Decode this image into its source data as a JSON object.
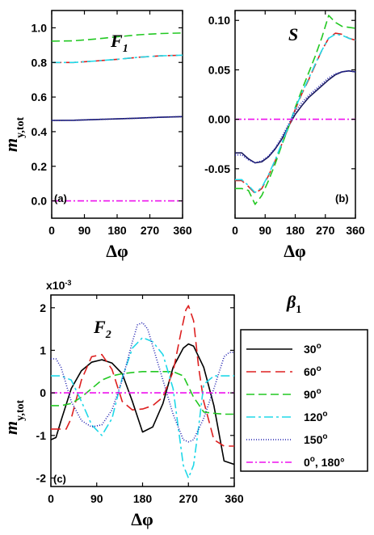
{
  "figure": {
    "panels_top": [
      {
        "title_main": "F",
        "title_sub": "1",
        "label": "(a)"
      },
      {
        "title_main": "S",
        "title_sub": "",
        "label": "(b)"
      }
    ],
    "panel_bottom": {
      "title_main": "F",
      "title_sub": "2",
      "label": "(c)",
      "multiplier": "x10",
      "multiplier_exp": "-3"
    },
    "ylabel_main": "m",
    "ylabel_sub": "y,tot",
    "xlabel": "Δφ",
    "legend_title_main": "β",
    "legend_title_sub": "1",
    "legend_entries": [
      {
        "text": "30",
        "sup": "o",
        "suffix": ""
      },
      {
        "text": "60",
        "sup": "o",
        "suffix": ""
      },
      {
        "text": "90",
        "sup": "o",
        "suffix": ""
      },
      {
        "text": "120",
        "sup": "o",
        "suffix": ""
      },
      {
        "text": "150",
        "sup": "o",
        "suffix": ""
      },
      {
        "text": "0",
        "sup": "o",
        "suffix": ", 180°"
      }
    ]
  },
  "chart_data": [
    {
      "type": "line",
      "panel": "a",
      "xlim": [
        0,
        360
      ],
      "ylim": [
        -0.1,
        1.1
      ],
      "x_ticks": [
        0,
        90,
        180,
        270,
        360
      ],
      "y_ticks": [
        0.0,
        0.2,
        0.4,
        0.6,
        0.8,
        1.0
      ],
      "y_tick_labels": [
        "0.0",
        "0.2",
        "0.4",
        "0.6",
        "0.8",
        "1.0"
      ],
      "series": [
        {
          "x": [
            0,
            60,
            120,
            180,
            240,
            300,
            360
          ],
          "y": [
            0.465,
            0.466,
            0.47,
            0.474,
            0.478,
            0.483,
            0.487
          ],
          "color": "#1a1a5e",
          "dash": ""
        },
        {
          "x": [
            0,
            60,
            120,
            180,
            240,
            300,
            360
          ],
          "y": [
            0.8,
            0.8,
            0.808,
            0.818,
            0.83,
            0.838,
            0.842
          ],
          "color": "#dd2020",
          "dash": "12 6"
        },
        {
          "x": [
            0,
            60,
            120,
            180,
            240,
            300,
            360
          ],
          "y": [
            0.923,
            0.925,
            0.935,
            0.948,
            0.96,
            0.967,
            0.97
          ],
          "color": "#22c822",
          "dash": "10 5"
        },
        {
          "x": [
            0,
            60,
            120,
            180,
            240,
            300,
            360
          ],
          "y": [
            0.8,
            0.8,
            0.808,
            0.818,
            0.83,
            0.838,
            0.842
          ],
          "color": "#20d8e8",
          "dash": "11 4 3 4"
        },
        {
          "x": [
            0,
            60,
            120,
            180,
            240,
            300,
            360
          ],
          "y": [
            0.465,
            0.466,
            0.47,
            0.474,
            0.478,
            0.483,
            0.487
          ],
          "color": "#2020b0",
          "dash": "1 2"
        },
        {
          "x": [
            0,
            360
          ],
          "y": [
            0.0,
            0.0
          ],
          "color": "#ee10ee",
          "dash": "8 3 2 3"
        }
      ]
    },
    {
      "type": "line",
      "panel": "b",
      "xlim": [
        0,
        360
      ],
      "ylim": [
        -0.1,
        0.11
      ],
      "x_ticks": [
        0,
        90,
        180,
        270,
        360
      ],
      "y_ticks": [
        -0.05,
        0.0,
        0.05,
        0.1
      ],
      "y_tick_labels": [
        "-0.05",
        "0.00",
        "0.05",
        "0.10"
      ],
      "series": [
        {
          "x": [
            0,
            20,
            40,
            60,
            80,
            100,
            120,
            140,
            160,
            180,
            200,
            220,
            240,
            260,
            280,
            300,
            320,
            340,
            360
          ],
          "y": [
            -0.034,
            -0.034,
            -0.04,
            -0.044,
            -0.043,
            -0.038,
            -0.03,
            -0.02,
            -0.007,
            0.005,
            0.014,
            0.022,
            0.028,
            0.034,
            0.04,
            0.045,
            0.048,
            0.049,
            0.048
          ],
          "color": "#1a1a5e",
          "dash": ""
        },
        {
          "x": [
            0,
            20,
            40,
            60,
            80,
            100,
            120,
            140,
            160,
            180,
            200,
            220,
            240,
            260,
            280,
            300,
            320,
            340,
            360
          ],
          "y": [
            -0.062,
            -0.062,
            -0.068,
            -0.075,
            -0.07,
            -0.057,
            -0.042,
            -0.025,
            -0.008,
            0.01,
            0.026,
            0.04,
            0.055,
            0.07,
            0.082,
            0.087,
            0.086,
            0.082,
            0.08
          ],
          "color": "#dd2020",
          "dash": "12 6"
        },
        {
          "x": [
            0,
            20,
            40,
            60,
            80,
            100,
            120,
            140,
            160,
            180,
            200,
            220,
            240,
            260,
            280,
            300,
            320,
            340,
            360
          ],
          "y": [
            -0.07,
            -0.07,
            -0.072,
            -0.086,
            -0.077,
            -0.062,
            -0.045,
            -0.026,
            -0.008,
            0.012,
            0.03,
            0.047,
            0.064,
            0.083,
            0.105,
            0.098,
            0.094,
            0.093,
            0.092
          ],
          "color": "#22c822",
          "dash": "10 5"
        },
        {
          "x": [
            0,
            20,
            40,
            60,
            80,
            100,
            120,
            140,
            160,
            180,
            200,
            220,
            240,
            260,
            280,
            300,
            320,
            340,
            360
          ],
          "y": [
            -0.061,
            -0.061,
            -0.067,
            -0.074,
            -0.069,
            -0.056,
            -0.041,
            -0.024,
            -0.007,
            0.011,
            0.027,
            0.041,
            0.056,
            0.07,
            0.082,
            0.086,
            0.085,
            0.082,
            0.08
          ],
          "color": "#20d8e8",
          "dash": "11 4 3 4"
        },
        {
          "x": [
            0,
            20,
            40,
            60,
            80,
            100,
            120,
            140,
            160,
            180,
            200,
            220,
            240,
            260,
            280,
            300,
            320,
            340,
            360
          ],
          "y": [
            -0.036,
            -0.036,
            -0.041,
            -0.044,
            -0.042,
            -0.037,
            -0.029,
            -0.018,
            -0.005,
            0.008,
            0.017,
            0.024,
            0.03,
            0.036,
            0.042,
            0.046,
            0.048,
            0.049,
            0.048
          ],
          "color": "#2020b0",
          "dash": "1 2"
        },
        {
          "x": [
            0,
            360
          ],
          "y": [
            0.0,
            0.0
          ],
          "color": "#ee10ee",
          "dash": "8 3 2 3"
        }
      ]
    },
    {
      "type": "line",
      "panel": "c",
      "xlim": [
        0,
        360
      ],
      "ylim": [
        -2.2,
        2.3
      ],
      "x_ticks": [
        0,
        90,
        180,
        270,
        360
      ],
      "y_ticks": [
        -2,
        -1,
        0,
        1,
        2
      ],
      "y_tick_labels": [
        "-2",
        "-1",
        "0",
        "1",
        "2"
      ],
      "legend": [
        "30°",
        "60°",
        "90°",
        "120°",
        "150°",
        "0°, 180°"
      ],
      "series": [
        {
          "name": "30°",
          "x": [
            0,
            10,
            20,
            40,
            60,
            80,
            100,
            120,
            140,
            160,
            180,
            200,
            220,
            240,
            260,
            270,
            280,
            300,
            320,
            340,
            360
          ],
          "y": [
            -1.1,
            -1.05,
            -0.65,
            0.1,
            0.52,
            0.72,
            0.78,
            0.7,
            0.45,
            -0.2,
            -0.92,
            -0.8,
            -0.25,
            0.6,
            1.05,
            1.15,
            1.1,
            0.6,
            -0.3,
            -1.6,
            -1.68
          ],
          "color": "#000000",
          "dash": ""
        },
        {
          "name": "60°",
          "x": [
            0,
            20,
            30,
            40,
            60,
            80,
            100,
            120,
            140,
            160,
            180,
            200,
            220,
            240,
            255,
            265,
            270,
            280,
            290,
            300,
            320,
            340,
            360
          ],
          "y": [
            -0.85,
            -0.85,
            -0.85,
            -0.6,
            0.3,
            0.85,
            0.9,
            0.55,
            -0.2,
            -0.4,
            -0.38,
            -0.3,
            -0.1,
            0.5,
            1.4,
            1.95,
            2.05,
            1.7,
            0.6,
            -0.2,
            -1.1,
            -1.25,
            -1.25
          ],
          "color": "#dd2020",
          "dash": "12 6"
        },
        {
          "name": "90°",
          "x": [
            0,
            20,
            40,
            60,
            80,
            100,
            120,
            140,
            160,
            180,
            200,
            220,
            240,
            260,
            280,
            300,
            320,
            340,
            360
          ],
          "y": [
            -0.3,
            -0.3,
            -0.25,
            -0.1,
            0.1,
            0.3,
            0.4,
            0.45,
            0.48,
            0.5,
            0.5,
            0.5,
            0.5,
            0.4,
            -0.1,
            -0.45,
            -0.48,
            -0.5,
            -0.5
          ],
          "color": "#22c822",
          "dash": "10 5"
        },
        {
          "name": "120°",
          "x": [
            0,
            20,
            40,
            60,
            80,
            100,
            120,
            140,
            160,
            180,
            200,
            220,
            240,
            250,
            260,
            270,
            280,
            290,
            300,
            320,
            340,
            360
          ],
          "y": [
            0.4,
            0.4,
            0.3,
            -0.2,
            -0.75,
            -1.0,
            -0.6,
            0.35,
            1.05,
            1.3,
            1.2,
            0.9,
            0.1,
            -0.8,
            -1.7,
            -2.0,
            -1.7,
            -0.8,
            0.2,
            0.4,
            0.4,
            0.4
          ],
          "color": "#20d8e8",
          "dash": "11 4 3 4"
        },
        {
          "name": "150°",
          "x": [
            0,
            10,
            20,
            40,
            60,
            80,
            100,
            120,
            140,
            160,
            170,
            180,
            190,
            200,
            220,
            240,
            260,
            270,
            280,
            300,
            320,
            340,
            350,
            360
          ],
          "y": [
            0.8,
            0.8,
            0.6,
            -0.2,
            -0.65,
            -0.8,
            -0.75,
            -0.4,
            0.3,
            1.2,
            1.6,
            1.65,
            1.5,
            1.1,
            0.3,
            -0.5,
            -1.1,
            -1.15,
            -1.1,
            -0.6,
            0.1,
            0.85,
            0.95,
            0.95
          ],
          "color": "#2020b0",
          "dash": "1 2"
        },
        {
          "name": "0°, 180°",
          "x": [
            0,
            360
          ],
          "y": [
            0,
            0
          ],
          "color": "#ee10ee",
          "dash": "8 3 2 3"
        }
      ]
    }
  ]
}
